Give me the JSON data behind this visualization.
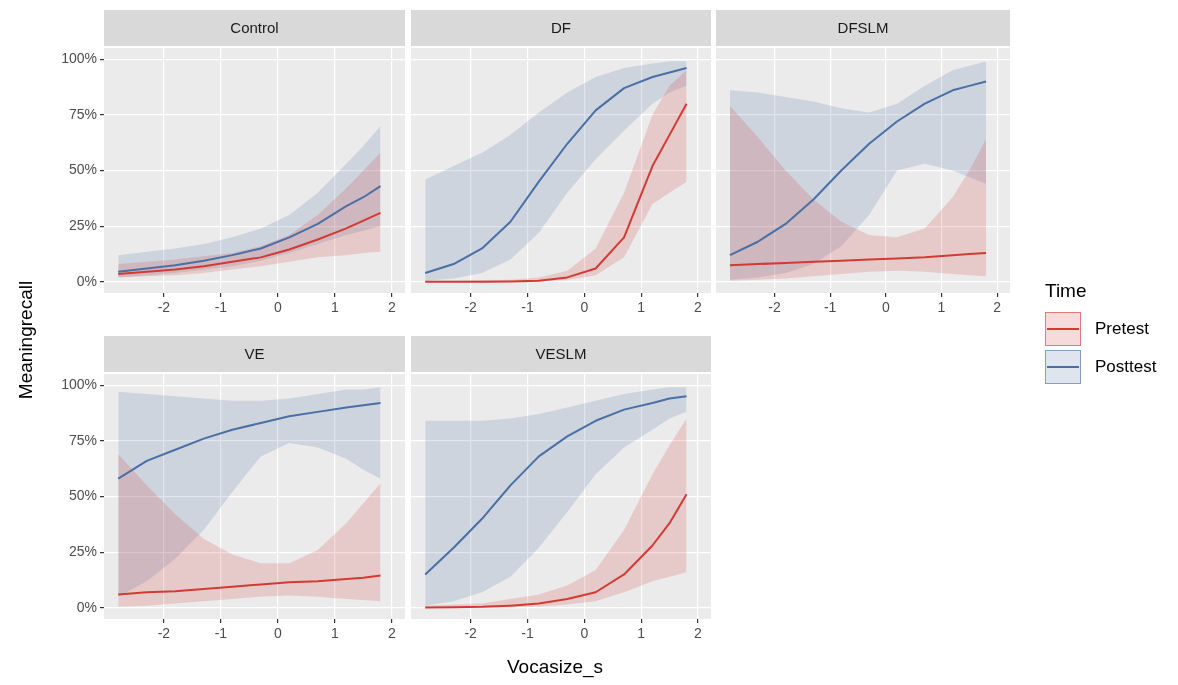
{
  "chart_data": [
    {
      "type": "line",
      "title": "Control",
      "xlabel": "Vocasize_s",
      "ylabel": "Meaningrecall",
      "legend_title": "Time",
      "legend": "right",
      "grid": true,
      "xlim": [
        -3.05,
        2.23
      ],
      "xticks": [
        -2,
        -1,
        0,
        1,
        2
      ],
      "ylim": [
        -5,
        105
      ],
      "yticks": [
        {
          "value": 0,
          "label": "0%"
        },
        {
          "value": 25,
          "label": "25%"
        },
        {
          "value": 50,
          "label": "50%"
        },
        {
          "value": 75,
          "label": "75%"
        },
        {
          "value": 100,
          "label": "100%"
        }
      ],
      "x": [
        -2.8,
        -2.3,
        -1.8,
        -1.3,
        -0.8,
        -0.3,
        0.2,
        0.7,
        1.2,
        1.5,
        1.8
      ],
      "series": [
        {
          "name": "Pretest",
          "color": "#d23a33",
          "values": [
            3.5,
            4.5,
            5.5,
            7,
            9,
            11,
            14.5,
            19,
            24,
            27.5,
            31
          ],
          "lower": [
            2,
            2.5,
            3,
            4,
            5.5,
            7,
            9,
            11,
            12,
            13,
            13.5
          ],
          "upper": [
            8,
            9,
            10,
            11.5,
            13,
            16,
            21,
            30,
            42,
            50,
            58
          ]
        },
        {
          "name": "Posttest",
          "color": "#4a6fa5",
          "values": [
            4.5,
            6,
            7.5,
            9.5,
            12,
            15,
            20,
            26,
            34,
            38,
            43
          ],
          "lower": [
            2,
            3,
            4,
            5.5,
            7,
            9.5,
            13,
            17,
            21,
            23,
            25
          ],
          "upper": [
            12,
            13.5,
            15,
            17,
            20,
            24,
            30,
            40,
            53,
            61,
            70
          ]
        }
      ]
    },
    {
      "type": "line",
      "title": "DF",
      "grid": true,
      "tick_labels": "x",
      "xlim": [
        -3.05,
        2.23
      ],
      "xticks": [
        -2,
        -1,
        0,
        1,
        2
      ],
      "ylim": [
        -5,
        105
      ],
      "yticks": [
        {
          "value": 0,
          "label": null
        },
        {
          "value": 25,
          "label": null
        },
        {
          "value": 50,
          "label": null
        },
        {
          "value": 75,
          "label": null
        },
        {
          "value": 100,
          "label": null
        }
      ],
      "x": [
        -2.8,
        -2.3,
        -1.8,
        -1.3,
        -0.8,
        -0.3,
        0.2,
        0.7,
        1.2,
        1.5,
        1.8
      ],
      "series": [
        {
          "color": "#d23a33",
          "values": [
            0,
            0,
            0,
            0.2,
            0.5,
            2,
            6,
            20,
            52,
            66,
            80
          ],
          "lower": [
            0,
            0,
            0,
            0,
            0.2,
            0.8,
            3,
            11,
            35,
            40,
            45
          ],
          "upper": [
            0.5,
            0.5,
            0.8,
            1,
            2,
            5,
            15,
            40,
            75,
            88,
            95
          ]
        },
        {
          "color": "#4a6fa5",
          "values": [
            4,
            8,
            15,
            27,
            45,
            62,
            77,
            87,
            92,
            94,
            96
          ],
          "lower": [
            0.5,
            1.5,
            4,
            10,
            22,
            40,
            55,
            68,
            80,
            85,
            88
          ],
          "upper": [
            46,
            52,
            58,
            66,
            76,
            85,
            92,
            96,
            98,
            99,
            99
          ]
        }
      ]
    },
    {
      "type": "line",
      "title": "DFSLM",
      "grid": true,
      "tick_labels": "x",
      "xlim": [
        -3.05,
        2.23
      ],
      "xticks": [
        -2,
        -1,
        0,
        1,
        2
      ],
      "ylim": [
        -5,
        105
      ],
      "yticks": [
        {
          "value": 0,
          "label": null
        },
        {
          "value": 25,
          "label": null
        },
        {
          "value": 50,
          "label": null
        },
        {
          "value": 75,
          "label": null
        },
        {
          "value": 100,
          "label": null
        }
      ],
      "x": [
        -2.8,
        -2.3,
        -1.8,
        -1.3,
        -0.8,
        -0.3,
        0.2,
        0.7,
        1.2,
        1.5,
        1.8
      ],
      "series": [
        {
          "color": "#d23a33",
          "values": [
            7.5,
            8,
            8.5,
            9,
            9.5,
            10,
            10.5,
            11,
            12,
            12.5,
            13
          ],
          "lower": [
            0.5,
            1,
            1.5,
            2.5,
            3.5,
            4.5,
            5,
            4.5,
            3.5,
            3,
            2.5
          ],
          "upper": [
            79,
            65,
            50,
            37,
            27,
            21,
            20,
            24,
            38,
            50,
            64
          ]
        },
        {
          "color": "#4a6fa5",
          "values": [
            12,
            18,
            26,
            37,
            50,
            62,
            72,
            80,
            86,
            88,
            90
          ],
          "lower": [
            1,
            2,
            4,
            8,
            16,
            30,
            50,
            53,
            50,
            47,
            44
          ],
          "upper": [
            86,
            85,
            83,
            81,
            78,
            76,
            80,
            88,
            95,
            97,
            99
          ]
        }
      ]
    },
    {
      "type": "line",
      "title": "VE",
      "grid": true,
      "xlim": [
        -3.05,
        2.23
      ],
      "xticks": [
        -2,
        -1,
        0,
        1,
        2
      ],
      "ylim": [
        -5,
        105
      ],
      "yticks": [
        {
          "value": 0,
          "label": "0%"
        },
        {
          "value": 25,
          "label": "25%"
        },
        {
          "value": 50,
          "label": "50%"
        },
        {
          "value": 75,
          "label": "75%"
        },
        {
          "value": 100,
          "label": "100%"
        }
      ],
      "x": [
        -2.8,
        -2.3,
        -1.8,
        -1.3,
        -0.8,
        -0.3,
        0.2,
        0.7,
        1.2,
        1.5,
        1.8
      ],
      "series": [
        {
          "color": "#d23a33",
          "values": [
            6,
            7,
            7.5,
            8.5,
            9.5,
            10.5,
            11.5,
            12,
            13,
            13.5,
            14.5
          ],
          "lower": [
            0.5,
            1,
            2,
            3,
            4,
            5,
            5.5,
            5,
            4,
            3.5,
            3
          ],
          "upper": [
            69,
            55,
            42,
            31,
            24,
            20,
            20,
            26,
            38,
            47,
            56
          ]
        },
        {
          "color": "#4a6fa5",
          "values": [
            58,
            66,
            71,
            76,
            80,
            83,
            86,
            88,
            90,
            91,
            92
          ],
          "lower": [
            5,
            12,
            22,
            35,
            52,
            68,
            74,
            72,
            67,
            62,
            58
          ],
          "upper": [
            97,
            96,
            95,
            94,
            93,
            93,
            94,
            96,
            98,
            98,
            99
          ]
        }
      ]
    },
    {
      "type": "line",
      "title": "VESLM",
      "grid": true,
      "tick_labels": "x",
      "xlim": [
        -3.05,
        2.23
      ],
      "xticks": [
        -2,
        -1,
        0,
        1,
        2
      ],
      "ylim": [
        -5,
        105
      ],
      "yticks": [
        {
          "value": 0,
          "label": null
        },
        {
          "value": 25,
          "label": null
        },
        {
          "value": 50,
          "label": null
        },
        {
          "value": 75,
          "label": null
        },
        {
          "value": 100,
          "label": null
        }
      ],
      "x": [
        -2.8,
        -2.3,
        -1.8,
        -1.3,
        -0.8,
        -0.3,
        0.2,
        0.7,
        1.2,
        1.5,
        1.8
      ],
      "series": [
        {
          "color": "#d23a33",
          "values": [
            0.2,
            0.3,
            0.5,
            1,
            2,
            4,
            7,
            15,
            28,
            38,
            51
          ],
          "lower": [
            0,
            0,
            0,
            0.2,
            0.6,
            1.5,
            3,
            7,
            12,
            14,
            16
          ],
          "upper": [
            1,
            1.5,
            2,
            4,
            6,
            10,
            17,
            35,
            60,
            73,
            85
          ]
        },
        {
          "color": "#4a6fa5",
          "values": [
            15,
            27,
            40,
            55,
            68,
            77,
            84,
            89,
            92,
            94,
            95
          ],
          "lower": [
            1,
            3,
            7,
            14,
            27,
            43,
            60,
            72,
            80,
            85,
            88
          ],
          "upper": [
            84,
            84,
            84,
            85,
            87,
            90,
            93,
            96,
            98,
            99,
            99
          ]
        }
      ]
    }
  ]
}
